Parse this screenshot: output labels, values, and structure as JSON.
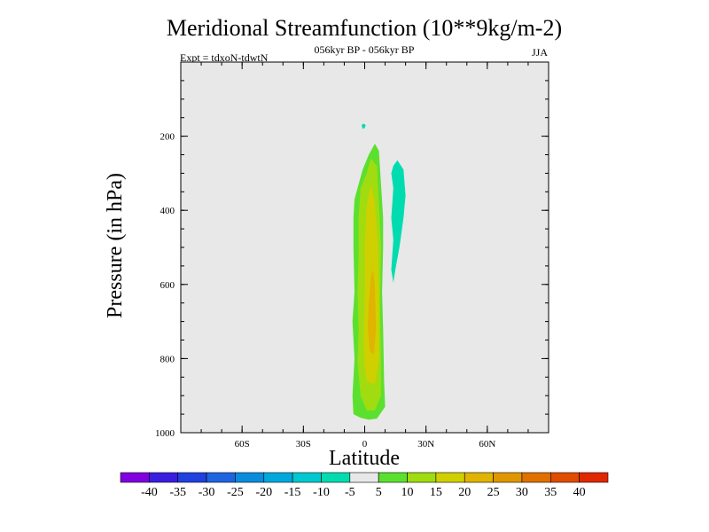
{
  "chart_data": {
    "type": "contour",
    "title": "Meridional Streamfunction (10**9kg/m-2)",
    "subtitle_center": "056kyr BP - 056kyr BP",
    "subtitle_left": "Expt = tdxoN-tdwtN",
    "subtitle_right": "JJA",
    "xlabel": "Latitude",
    "ylabel": "Pressure (in hPa)",
    "xlim": [
      -90,
      90
    ],
    "ylim": [
      0,
      1000
    ],
    "y_inverted": true,
    "x_ticks": [
      {
        "value": -60,
        "label": "60S"
      },
      {
        "value": -30,
        "label": "30S"
      },
      {
        "value": 0,
        "label": "0"
      },
      {
        "value": 30,
        "label": "30N"
      },
      {
        "value": 60,
        "label": "60N"
      }
    ],
    "y_ticks": [
      {
        "value": 200,
        "label": "200"
      },
      {
        "value": 400,
        "label": "400"
      },
      {
        "value": 600,
        "label": "600"
      },
      {
        "value": 800,
        "label": "800"
      },
      {
        "value": 1000,
        "label": "1000"
      }
    ],
    "background_color": "#e8e8e8",
    "colorbar": {
      "labels": [
        "-40",
        "-35",
        "-30",
        "-25",
        "-20",
        "-15",
        "-10",
        "-5",
        "5",
        "10",
        "15",
        "20",
        "25",
        "30",
        "35",
        "40"
      ],
      "colors": [
        "#8000e0",
        "#3a1ee0",
        "#2040e0",
        "#1e64e0",
        "#0a8cdc",
        "#00a8dc",
        "#00c8d0",
        "#00dcb0",
        "#e8e8e8",
        "#5ce030",
        "#a0dc10",
        "#d0d000",
        "#e0b400",
        "#e09600",
        "#e07000",
        "#e04c00",
        "#e02800"
      ]
    },
    "contours": [
      {
        "name": "contour-positive-5-10",
        "fill": "#5ce030",
        "points": [
          [
            -5.5,
            950
          ],
          [
            -2,
            960
          ],
          [
            2,
            965
          ],
          [
            6,
            962
          ],
          [
            10,
            930
          ],
          [
            9.5,
            860
          ],
          [
            9,
            720
          ],
          [
            8.5,
            620
          ],
          [
            9,
            500
          ],
          [
            9,
            420
          ],
          [
            8,
            330
          ],
          [
            7,
            240
          ],
          [
            5,
            220
          ],
          [
            2,
            250
          ],
          [
            -1,
            290
          ],
          [
            -3,
            330
          ],
          [
            -5,
            370
          ],
          [
            -5.5,
            420
          ],
          [
            -5.5,
            500
          ],
          [
            -5,
            620
          ],
          [
            -6,
            700
          ],
          [
            -5,
            800
          ],
          [
            -6,
            900
          ]
        ]
      },
      {
        "name": "contour-positive-10-15",
        "fill": "#a0dc10",
        "points": [
          [
            -2,
            900
          ],
          [
            1,
            940
          ],
          [
            5,
            940
          ],
          [
            8,
            900
          ],
          [
            8,
            800
          ],
          [
            7.5,
            650
          ],
          [
            8,
            500
          ],
          [
            7,
            380
          ],
          [
            6,
            280
          ],
          [
            3,
            260
          ],
          [
            1,
            300
          ],
          [
            -2,
            340
          ],
          [
            -3,
            420
          ],
          [
            -3,
            520
          ],
          [
            -3.5,
            620
          ],
          [
            -3,
            720
          ],
          [
            -3.5,
            810
          ]
        ]
      },
      {
        "name": "contour-positive-15-20",
        "fill": "#d0d000",
        "points": [
          [
            1,
            860
          ],
          [
            5,
            870
          ],
          [
            7,
            800
          ],
          [
            7,
            650
          ],
          [
            6.5,
            500
          ],
          [
            5,
            380
          ],
          [
            3,
            330
          ],
          [
            1,
            390
          ],
          [
            0,
            500
          ],
          [
            0,
            620
          ],
          [
            -0.5,
            740
          ],
          [
            0,
            820
          ]
        ]
      },
      {
        "name": "contour-positive-20-25",
        "fill": "#e0b400",
        "points": [
          [
            2.5,
            780
          ],
          [
            4.5,
            790
          ],
          [
            5.5,
            720
          ],
          [
            5,
            600
          ],
          [
            4,
            560
          ],
          [
            3,
            580
          ],
          [
            2,
            650
          ],
          [
            1.5,
            720
          ]
        ]
      },
      {
        "name": "contour-negative-10-5-main",
        "fill": "#00dcb0",
        "points": [
          [
            14,
            280
          ],
          [
            16,
            265
          ],
          [
            19,
            290
          ],
          [
            20,
            360
          ],
          [
            19,
            420
          ],
          [
            17,
            500
          ],
          [
            15,
            560
          ],
          [
            14,
            595
          ],
          [
            13,
            560
          ],
          [
            14,
            480
          ],
          [
            13,
            420
          ],
          [
            14,
            340
          ],
          [
            13,
            300
          ]
        ]
      },
      {
        "name": "contour-negative-10-5-small",
        "fill": "#00dcb0",
        "points": [
          [
            -1.5,
            170
          ],
          [
            -0.5,
            166
          ],
          [
            0.5,
            170
          ],
          [
            0,
            178
          ],
          [
            -1,
            180
          ]
        ]
      }
    ]
  }
}
